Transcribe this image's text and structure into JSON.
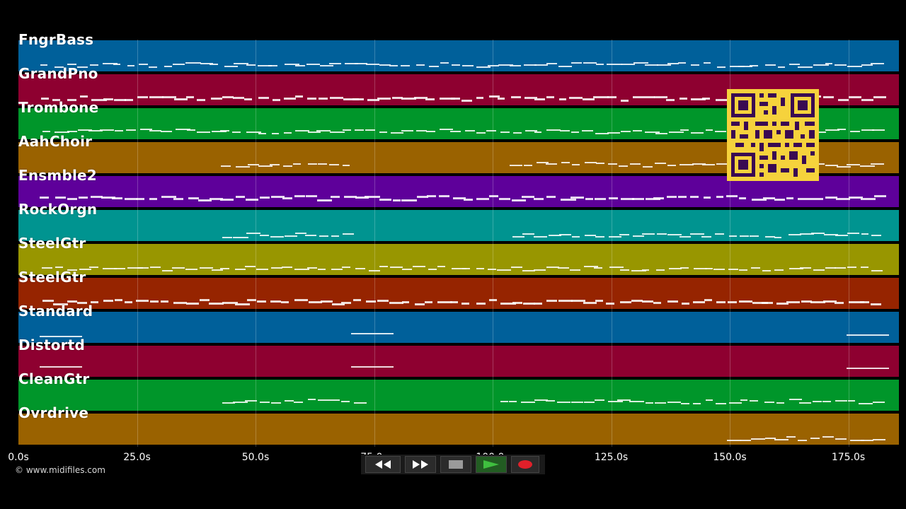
{
  "tracks": [
    {
      "label": "FngrBass",
      "color": "#00609a"
    },
    {
      "label": "GrandPno",
      "color": "#8e0030"
    },
    {
      "label": "Trombone",
      "color": "#00962a"
    },
    {
      "label": "AahChoir",
      "color": "#9a6200"
    },
    {
      "label": "Ensmble2",
      "color": "#5e009a"
    },
    {
      "label": "RockOrgn",
      "color": "#009490"
    },
    {
      "label": "SteelGtr",
      "color": "#989600"
    },
    {
      "label": "SteelGtr",
      "color": "#962400"
    },
    {
      "label": "Standard",
      "color": "#00609a"
    },
    {
      "label": "Distortd",
      "color": "#8e0030"
    },
    {
      "label": "CleanGtr",
      "color": "#00962a"
    },
    {
      "label": "Ovrdrive",
      "color": "#9a6200"
    }
  ],
  "timeline": {
    "ticks": [
      "0.0s",
      "25.0s",
      "50.0s",
      "75.0s",
      "100.0s",
      "125.0s",
      "150.0s",
      "175.0s"
    ]
  },
  "copyright": "© www.midifiles.com",
  "transport": {
    "buttons": [
      "rewind-icon",
      "fast-forward-icon",
      "stop-icon",
      "play-icon",
      "record-icon"
    ],
    "play_color": "#3fbf3f",
    "record_color": "#e0202a"
  }
}
